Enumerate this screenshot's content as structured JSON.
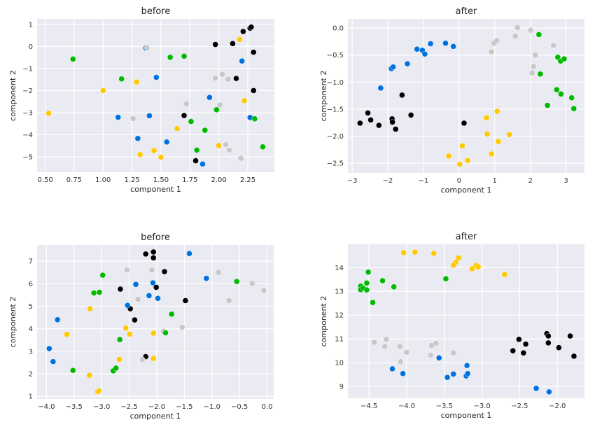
{
  "colors": {
    "black": "#000000",
    "blue": "#0072e0",
    "grey": "#c8c8c8",
    "green": "#00b900",
    "yellow": "#ffc800",
    "background": "#eaeaf2",
    "grid": "#ffffff"
  },
  "chart_data": [
    {
      "type": "scatter",
      "title": "before",
      "xlabel": "component 1",
      "ylabel": "component 2",
      "xlim": [
        0.43,
        2.48
      ],
      "ylim": [
        -5.7,
        1.25
      ],
      "xticks": [
        0.5,
        0.75,
        1.0,
        1.25,
        1.5,
        1.75,
        2.0,
        2.25
      ],
      "xtick_labels": [
        "0.50",
        "0.75",
        "1.00",
        "1.25",
        "1.50",
        "1.75",
        "2.00",
        "2.25"
      ],
      "yticks": [
        1,
        0,
        -1,
        -2,
        -3,
        -4,
        -5
      ],
      "ytick_labels": [
        "1",
        "0",
        "−1",
        "−2",
        "−3",
        "−4",
        "−5"
      ],
      "grid": true,
      "series": [
        {
          "name": "black",
          "color": "black",
          "points": [
            [
              1.97,
              0.09
            ],
            [
              2.12,
              0.13
            ],
            [
              2.21,
              0.68
            ],
            [
              2.27,
              0.83
            ],
            [
              2.28,
              0.88
            ],
            [
              2.3,
              -0.26
            ],
            [
              2.15,
              -1.45
            ],
            [
              2.3,
              -2.0
            ],
            [
              1.7,
              -3.13
            ],
            [
              1.8,
              -5.18
            ]
          ]
        },
        {
          "name": "blue",
          "color": "blue",
          "points": [
            [
              1.37,
              -0.07
            ],
            [
              1.46,
              -1.4
            ],
            [
              2.2,
              -0.66
            ],
            [
              1.92,
              -2.31
            ],
            [
              1.13,
              -3.21
            ],
            [
              1.4,
              -3.14
            ],
            [
              2.27,
              -3.22
            ],
            [
              1.3,
              -4.17
            ],
            [
              1.55,
              -4.33
            ],
            [
              1.86,
              -5.33
            ]
          ]
        },
        {
          "name": "grey",
          "color": "grey",
          "points": [
            [
              1.38,
              -0.06
            ],
            [
              1.97,
              -1.44
            ],
            [
              2.03,
              -1.26
            ],
            [
              2.08,
              -1.49
            ],
            [
              1.72,
              -2.6
            ],
            [
              2.01,
              -2.65
            ],
            [
              1.26,
              -3.27
            ],
            [
              2.06,
              -4.45
            ],
            [
              2.09,
              -4.7
            ],
            [
              2.19,
              -5.07
            ]
          ]
        },
        {
          "name": "green",
          "color": "green",
          "points": [
            [
              0.74,
              -0.57
            ],
            [
              1.16,
              -1.47
            ],
            [
              1.58,
              -0.49
            ],
            [
              1.7,
              -0.44
            ],
            [
              1.98,
              -2.87
            ],
            [
              1.76,
              -3.4
            ],
            [
              2.31,
              -3.28
            ],
            [
              1.88,
              -3.8
            ],
            [
              1.81,
              -4.7
            ],
            [
              2.38,
              -4.55
            ]
          ]
        },
        {
          "name": "yellow",
          "color": "yellow",
          "points": [
            [
              0.53,
              -3.03
            ],
            [
              1.0,
              -2.0
            ],
            [
              1.29,
              -1.61
            ],
            [
              2.18,
              0.32
            ],
            [
              2.22,
              -2.46
            ],
            [
              1.64,
              -3.72
            ],
            [
              1.32,
              -4.9
            ],
            [
              1.44,
              -4.72
            ],
            [
              1.5,
              -5.02
            ],
            [
              2.0,
              -4.49
            ]
          ]
        }
      ]
    },
    {
      "type": "scatter",
      "title": "after",
      "xlabel": "component 1",
      "ylabel": "component 2",
      "xlim": [
        -3.12,
        3.52
      ],
      "ylim": [
        -2.68,
        0.17
      ],
      "xticks": [
        -3,
        -2,
        -1,
        0,
        1,
        2,
        3
      ],
      "xtick_labels": [
        "−3",
        "−2",
        "−1",
        "0",
        "1",
        "2",
        "3"
      ],
      "yticks": [
        0.0,
        -0.5,
        -1.0,
        -1.5,
        -2.0,
        -2.5
      ],
      "ytick_labels": [
        "0.0",
        "−0.5",
        "−1.0",
        "−1.5",
        "−2.0",
        "−2.5"
      ],
      "grid": true,
      "series": [
        {
          "name": "black",
          "color": "black",
          "points": [
            [
              -2.78,
              -1.76
            ],
            [
              -2.56,
              -1.57
            ],
            [
              -2.48,
              -1.7
            ],
            [
              -2.25,
              -1.8
            ],
            [
              -1.88,
              -1.68
            ],
            [
              -1.87,
              -1.74
            ],
            [
              -1.78,
              -1.87
            ],
            [
              -1.6,
              -1.24
            ],
            [
              -1.35,
              -1.61
            ],
            [
              0.14,
              -1.76
            ]
          ]
        },
        {
          "name": "blue",
          "color": "blue",
          "points": [
            [
              -2.2,
              -1.11
            ],
            [
              -1.9,
              -0.75
            ],
            [
              -1.85,
              -0.72
            ],
            [
              -1.45,
              -0.66
            ],
            [
              -1.18,
              -0.39
            ],
            [
              -1.03,
              -0.41
            ],
            [
              -0.96,
              -0.48
            ],
            [
              -0.8,
              -0.29
            ],
            [
              -0.38,
              -0.28
            ],
            [
              -0.16,
              -0.34
            ]
          ]
        },
        {
          "name": "grey",
          "color": "grey",
          "points": [
            [
              0.91,
              -0.44
            ],
            [
              0.98,
              -0.28
            ],
            [
              1.06,
              -0.23
            ],
            [
              1.58,
              -0.15
            ],
            [
              1.64,
              0.01
            ],
            [
              2.01,
              -0.04
            ],
            [
              2.14,
              -0.5
            ],
            [
              2.09,
              -0.71
            ],
            [
              2.05,
              -0.83
            ],
            [
              2.65,
              -0.32
            ]
          ]
        },
        {
          "name": "green",
          "color": "green",
          "points": [
            [
              2.24,
              -0.12
            ],
            [
              2.28,
              -0.85
            ],
            [
              2.77,
              -0.54
            ],
            [
              2.85,
              -0.61
            ],
            [
              2.95,
              -0.57
            ],
            [
              2.74,
              -1.14
            ],
            [
              2.86,
              -1.22
            ],
            [
              3.16,
              -1.29
            ],
            [
              3.22,
              -1.49
            ],
            [
              2.48,
              -1.43
            ]
          ]
        },
        {
          "name": "yellow",
          "color": "yellow",
          "points": [
            [
              0.77,
              -1.66
            ],
            [
              1.07,
              -1.54
            ],
            [
              0.79,
              -1.96
            ],
            [
              1.41,
              -1.97
            ],
            [
              1.1,
              -2.1
            ],
            [
              0.09,
              -2.18
            ],
            [
              -0.29,
              -2.37
            ],
            [
              0.91,
              -2.33
            ],
            [
              0.24,
              -2.45
            ],
            [
              0.02,
              -2.52
            ]
          ]
        }
      ]
    },
    {
      "type": "scatter",
      "title": "before",
      "xlabel": "component 1",
      "ylabel": "component 2",
      "xlim": [
        -4.17,
        0.12
      ],
      "ylim": [
        0.88,
        7.72
      ],
      "xticks": [
        -4.0,
        -3.5,
        -3.0,
        -2.5,
        -2.0,
        -1.5,
        -1.0,
        -0.5,
        0.0
      ],
      "xtick_labels": [
        "−4.0",
        "−3.5",
        "−3.0",
        "−2.5",
        "−2.0",
        "−1.5",
        "−1.0",
        "−0.5",
        "0.0"
      ],
      "yticks": [
        1,
        2,
        3,
        4,
        5,
        6,
        7
      ],
      "ytick_labels": [
        "1",
        "2",
        "3",
        "4",
        "5",
        "6",
        "7"
      ],
      "grid": true,
      "series": [
        {
          "name": "black",
          "color": "black",
          "points": [
            [
              -2.66,
              5.76
            ],
            [
              -2.48,
              4.89
            ],
            [
              -2.4,
              4.39
            ],
            [
              -2.2,
              7.32
            ],
            [
              -2.06,
              7.41
            ],
            [
              -2.06,
              7.15
            ],
            [
              -2.01,
              5.84
            ],
            [
              -1.86,
              6.54
            ],
            [
              -1.48,
              5.25
            ],
            [
              -2.2,
              2.76
            ]
          ]
        },
        {
          "name": "blue",
          "color": "blue",
          "points": [
            [
              -3.95,
              3.12
            ],
            [
              -3.88,
              2.54
            ],
            [
              -3.8,
              4.4
            ],
            [
              -2.38,
              5.97
            ],
            [
              -2.53,
              5.04
            ],
            [
              -2.14,
              5.47
            ],
            [
              -2.07,
              6.04
            ],
            [
              -1.98,
              5.35
            ],
            [
              -1.41,
              7.34
            ],
            [
              -1.1,
              6.24
            ]
          ]
        },
        {
          "name": "grey",
          "color": "grey",
          "points": [
            [
              -2.54,
              6.61
            ],
            [
              -2.09,
              6.61
            ],
            [
              -2.34,
              5.31
            ],
            [
              -2.26,
              2.63
            ],
            [
              -1.88,
              3.89
            ],
            [
              -1.54,
              4.07
            ],
            [
              -0.88,
              6.5
            ],
            [
              -0.69,
              5.25
            ],
            [
              -0.27,
              6.01
            ],
            [
              -0.06,
              5.7
            ]
          ]
        },
        {
          "name": "green",
          "color": "green",
          "points": [
            [
              -3.52,
              2.15
            ],
            [
              -3.14,
              5.59
            ],
            [
              -3.04,
              5.62
            ],
            [
              -2.98,
              6.38
            ],
            [
              -2.79,
              2.13
            ],
            [
              -2.74,
              2.25
            ],
            [
              -2.67,
              3.52
            ],
            [
              -1.73,
              4.65
            ],
            [
              -1.84,
              3.82
            ],
            [
              -0.55,
              6.1
            ]
          ]
        },
        {
          "name": "yellow",
          "color": "yellow",
          "points": [
            [
              -3.63,
              3.75
            ],
            [
              -3.21,
              4.89
            ],
            [
              -3.22,
              1.93
            ],
            [
              -3.07,
              1.2
            ],
            [
              -3.05,
              1.24
            ],
            [
              -2.56,
              4.03
            ],
            [
              -2.49,
              3.76
            ],
            [
              -2.68,
              2.64
            ],
            [
              -2.06,
              3.8
            ],
            [
              -2.06,
              2.68
            ]
          ]
        }
      ]
    },
    {
      "type": "scatter",
      "title": "after",
      "xlabel": "component 1",
      "ylabel": "component 2",
      "xlim": [
        -4.78,
        -1.64
      ],
      "ylim": [
        8.5,
        14.98
      ],
      "xticks": [
        -4.5,
        -4.0,
        -3.5,
        -3.0,
        -2.5,
        -2.0
      ],
      "xtick_labels": [
        "−4.5",
        "−4.0",
        "−3.5",
        "−3.0",
        "−2.5",
        "−2.0"
      ],
      "yticks": [
        9,
        10,
        11,
        12,
        13,
        14
      ],
      "ytick_labels": [
        "9",
        "10",
        "11",
        "12",
        "13",
        "14"
      ],
      "grid": true,
      "series": [
        {
          "name": "black",
          "color": "black",
          "points": [
            [
              -2.59,
              10.5
            ],
            [
              -2.51,
              10.98
            ],
            [
              -2.45,
              10.41
            ],
            [
              -2.42,
              10.78
            ],
            [
              -2.14,
              11.22
            ],
            [
              -2.12,
              11.12
            ],
            [
              -2.12,
              10.83
            ],
            [
              -1.98,
              10.63
            ],
            [
              -1.83,
              11.12
            ],
            [
              -1.78,
              10.27
            ]
          ]
        },
        {
          "name": "blue",
          "color": "blue",
          "points": [
            [
              -4.19,
              9.74
            ],
            [
              -4.05,
              9.54
            ],
            [
              -3.57,
              10.2
            ],
            [
              -3.46,
              9.38
            ],
            [
              -3.38,
              9.52
            ],
            [
              -3.21,
              9.44
            ],
            [
              -3.19,
              9.54
            ],
            [
              -3.2,
              9.88
            ],
            [
              -2.28,
              8.92
            ],
            [
              -2.11,
              8.77
            ]
          ]
        },
        {
          "name": "grey",
          "color": "grey",
          "points": [
            [
              -4.43,
              10.86
            ],
            [
              -4.27,
              10.98
            ],
            [
              -4.29,
              10.68
            ],
            [
              -4.09,
              10.68
            ],
            [
              -4.0,
              10.44
            ],
            [
              -4.08,
              10.04
            ],
            [
              -3.67,
              10.72
            ],
            [
              -3.61,
              10.82
            ],
            [
              -3.68,
              10.32
            ],
            [
              -3.38,
              10.41
            ]
          ]
        },
        {
          "name": "green",
          "color": "green",
          "points": [
            [
              -4.61,
              13.22
            ],
            [
              -4.61,
              13.07
            ],
            [
              -4.58,
              13.14
            ],
            [
              -4.53,
              13.35
            ],
            [
              -4.53,
              13.06
            ],
            [
              -4.51,
              13.81
            ],
            [
              -4.45,
              12.53
            ],
            [
              -4.32,
              13.45
            ],
            [
              -4.17,
              13.19
            ],
            [
              -3.48,
              13.53
            ]
          ]
        },
        {
          "name": "yellow",
          "color": "yellow",
          "points": [
            [
              -4.04,
              14.63
            ],
            [
              -3.89,
              14.65
            ],
            [
              -3.64,
              14.6
            ],
            [
              -3.31,
              14.41
            ],
            [
              -3.35,
              14.22
            ],
            [
              -3.38,
              14.1
            ],
            [
              -3.13,
              13.95
            ],
            [
              -3.08,
              14.09
            ],
            [
              -3.05,
              14.03
            ],
            [
              -2.7,
              13.71
            ]
          ]
        }
      ]
    }
  ]
}
